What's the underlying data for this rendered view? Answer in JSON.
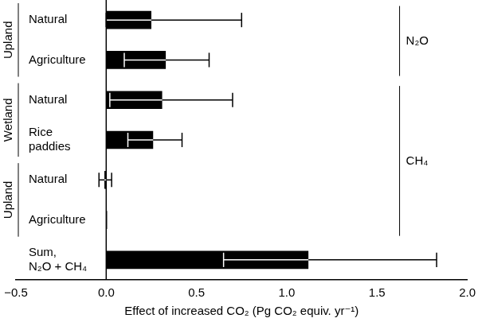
{
  "chart_data": {
    "type": "bar",
    "orientation": "horizontal",
    "categories": [
      "Natural",
      "Agriculture",
      "Natural",
      [
        "Rice",
        "paddies"
      ],
      "Natural",
      "Agriculture",
      [
        "Sum,",
        "N₂O + CH₄"
      ]
    ],
    "values": [
      0.25,
      0.33,
      0.31,
      0.26,
      -0.01,
      0.005,
      1.12
    ],
    "error_low": [
      0.0,
      0.1,
      0.02,
      0.12,
      -0.04,
      null,
      0.65
    ],
    "error_high": [
      0.75,
      0.57,
      0.7,
      0.42,
      0.03,
      null,
      1.83
    ],
    "color": "#000000",
    "x_label": "Effect of increased CO₂ (Pg CO₂ equiv. yr⁻¹)",
    "xlim": [
      -0.5,
      2.0
    ],
    "xticks": [
      {
        "value": -0.5,
        "label": "−0.5"
      },
      {
        "value": 0,
        "label": "0.0"
      },
      0.5,
      {
        "value": 1,
        "label": "1.0"
      },
      1.5,
      {
        "value": 2,
        "label": "2.0"
      }
    ],
    "grid": false,
    "data_labels": false,
    "groups": [
      {
        "label": "Upland",
        "first": 0,
        "last": 1
      },
      {
        "label": "Wetland",
        "first": 2,
        "last": 3
      },
      {
        "label": "Upland",
        "first": 4,
        "last": 5
      }
    ],
    "gas_groups": [
      {
        "label": "N₂O",
        "first": 0,
        "last": 1
      },
      {
        "label": "CH₄",
        "first": 2,
        "last": 5
      }
    ]
  }
}
